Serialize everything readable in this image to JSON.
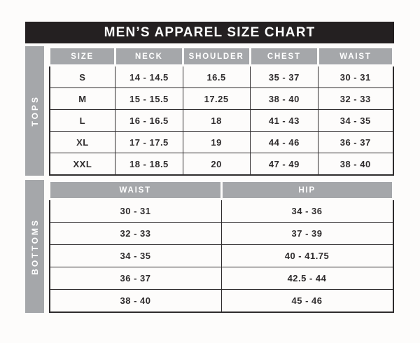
{
  "title": "MEN’S APPAREL SIZE CHART",
  "colors": {
    "title_bar_bg": "#242021",
    "title_text": "#ffffff",
    "panel_gray": "#a5a7aa",
    "header_text": "#ffffff",
    "body_text": "#2f2c2d",
    "table_border": "#2f2c2d",
    "page_bg": "#fdfcfb"
  },
  "tops": {
    "section_label": "TOPS",
    "columns": [
      "SIZE",
      "NECK",
      "SHOULDER",
      "CHEST",
      "WAIST"
    ],
    "rows": [
      [
        "S",
        "14 - 14.5",
        "16.5",
        "35 - 37",
        "30 - 31"
      ],
      [
        "M",
        "15 - 15.5",
        "17.25",
        "38 - 40",
        "32 - 33"
      ],
      [
        "L",
        "16 - 16.5",
        "18",
        "41 - 43",
        "34 - 35"
      ],
      [
        "XL",
        "17 - 17.5",
        "19",
        "44 - 46",
        "36 - 37"
      ],
      [
        "XXL",
        "18 - 18.5",
        "20",
        "47 - 49",
        "38 - 40"
      ]
    ]
  },
  "bottoms": {
    "section_label": "BOTTOMS",
    "columns": [
      "WAIST",
      "HIP"
    ],
    "rows": [
      [
        "30 - 31",
        "34 - 36"
      ],
      [
        "32 - 33",
        "37 - 39"
      ],
      [
        "34 - 35",
        "40 - 41.75"
      ],
      [
        "36 - 37",
        "42.5 - 44"
      ],
      [
        "38 - 40",
        "45 - 46"
      ]
    ]
  }
}
